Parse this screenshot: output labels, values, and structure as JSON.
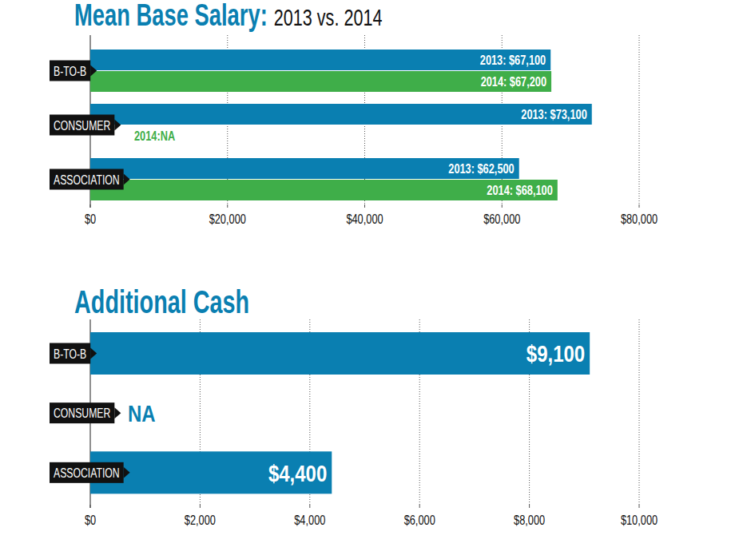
{
  "chart_data": [
    {
      "type": "bar",
      "title": "Mean Base Salary:",
      "subtitle": "2013 vs. 2014",
      "orientation": "horizontal",
      "categories": [
        "B-TO-B",
        "CONSUMER",
        "ASSOCIATION"
      ],
      "series": [
        {
          "name": "2013",
          "color": "#0a7fb1",
          "values": [
            67100,
            73100,
            62500
          ],
          "value_labels": [
            "2013: $67,100",
            "2013: $73,100",
            "2013: $62,500"
          ]
        },
        {
          "name": "2014",
          "color": "#3fae49",
          "values": [
            67200,
            null,
            68100
          ],
          "value_labels": [
            "2014: $67,200",
            "2014:NA",
            "2014: $68,100"
          ]
        }
      ],
      "xlim": [
        0,
        80000
      ],
      "xticks": [
        {
          "value": 0,
          "label": "$0"
        },
        {
          "value": 20000,
          "label": "$20,000"
        },
        {
          "value": 40000,
          "label": "$40,000"
        },
        {
          "value": 60000,
          "label": "$60,000"
        },
        {
          "value": 80000,
          "label": "$80,000"
        }
      ],
      "grid": true,
      "data_labels": true
    },
    {
      "type": "bar",
      "title": "Additional Cash",
      "orientation": "horizontal",
      "categories": [
        "B-TO-B",
        "CONSUMER",
        "ASSOCIATION"
      ],
      "values": [
        9100,
        null,
        4400
      ],
      "value_labels": [
        "$9,100",
        "NA",
        "$4,400"
      ],
      "color": "#0a7fb1",
      "xlim": [
        0,
        10000
      ],
      "xticks": [
        {
          "value": 0,
          "label": "$0"
        },
        {
          "value": 2000,
          "label": "$2,000"
        },
        {
          "value": 4000,
          "label": "$4,000"
        },
        {
          "value": 6000,
          "label": "$6,000"
        },
        {
          "value": 8000,
          "label": "$8,000"
        },
        {
          "value": 10000,
          "label": "$10,000"
        }
      ],
      "grid": true,
      "data_labels": true
    }
  ]
}
